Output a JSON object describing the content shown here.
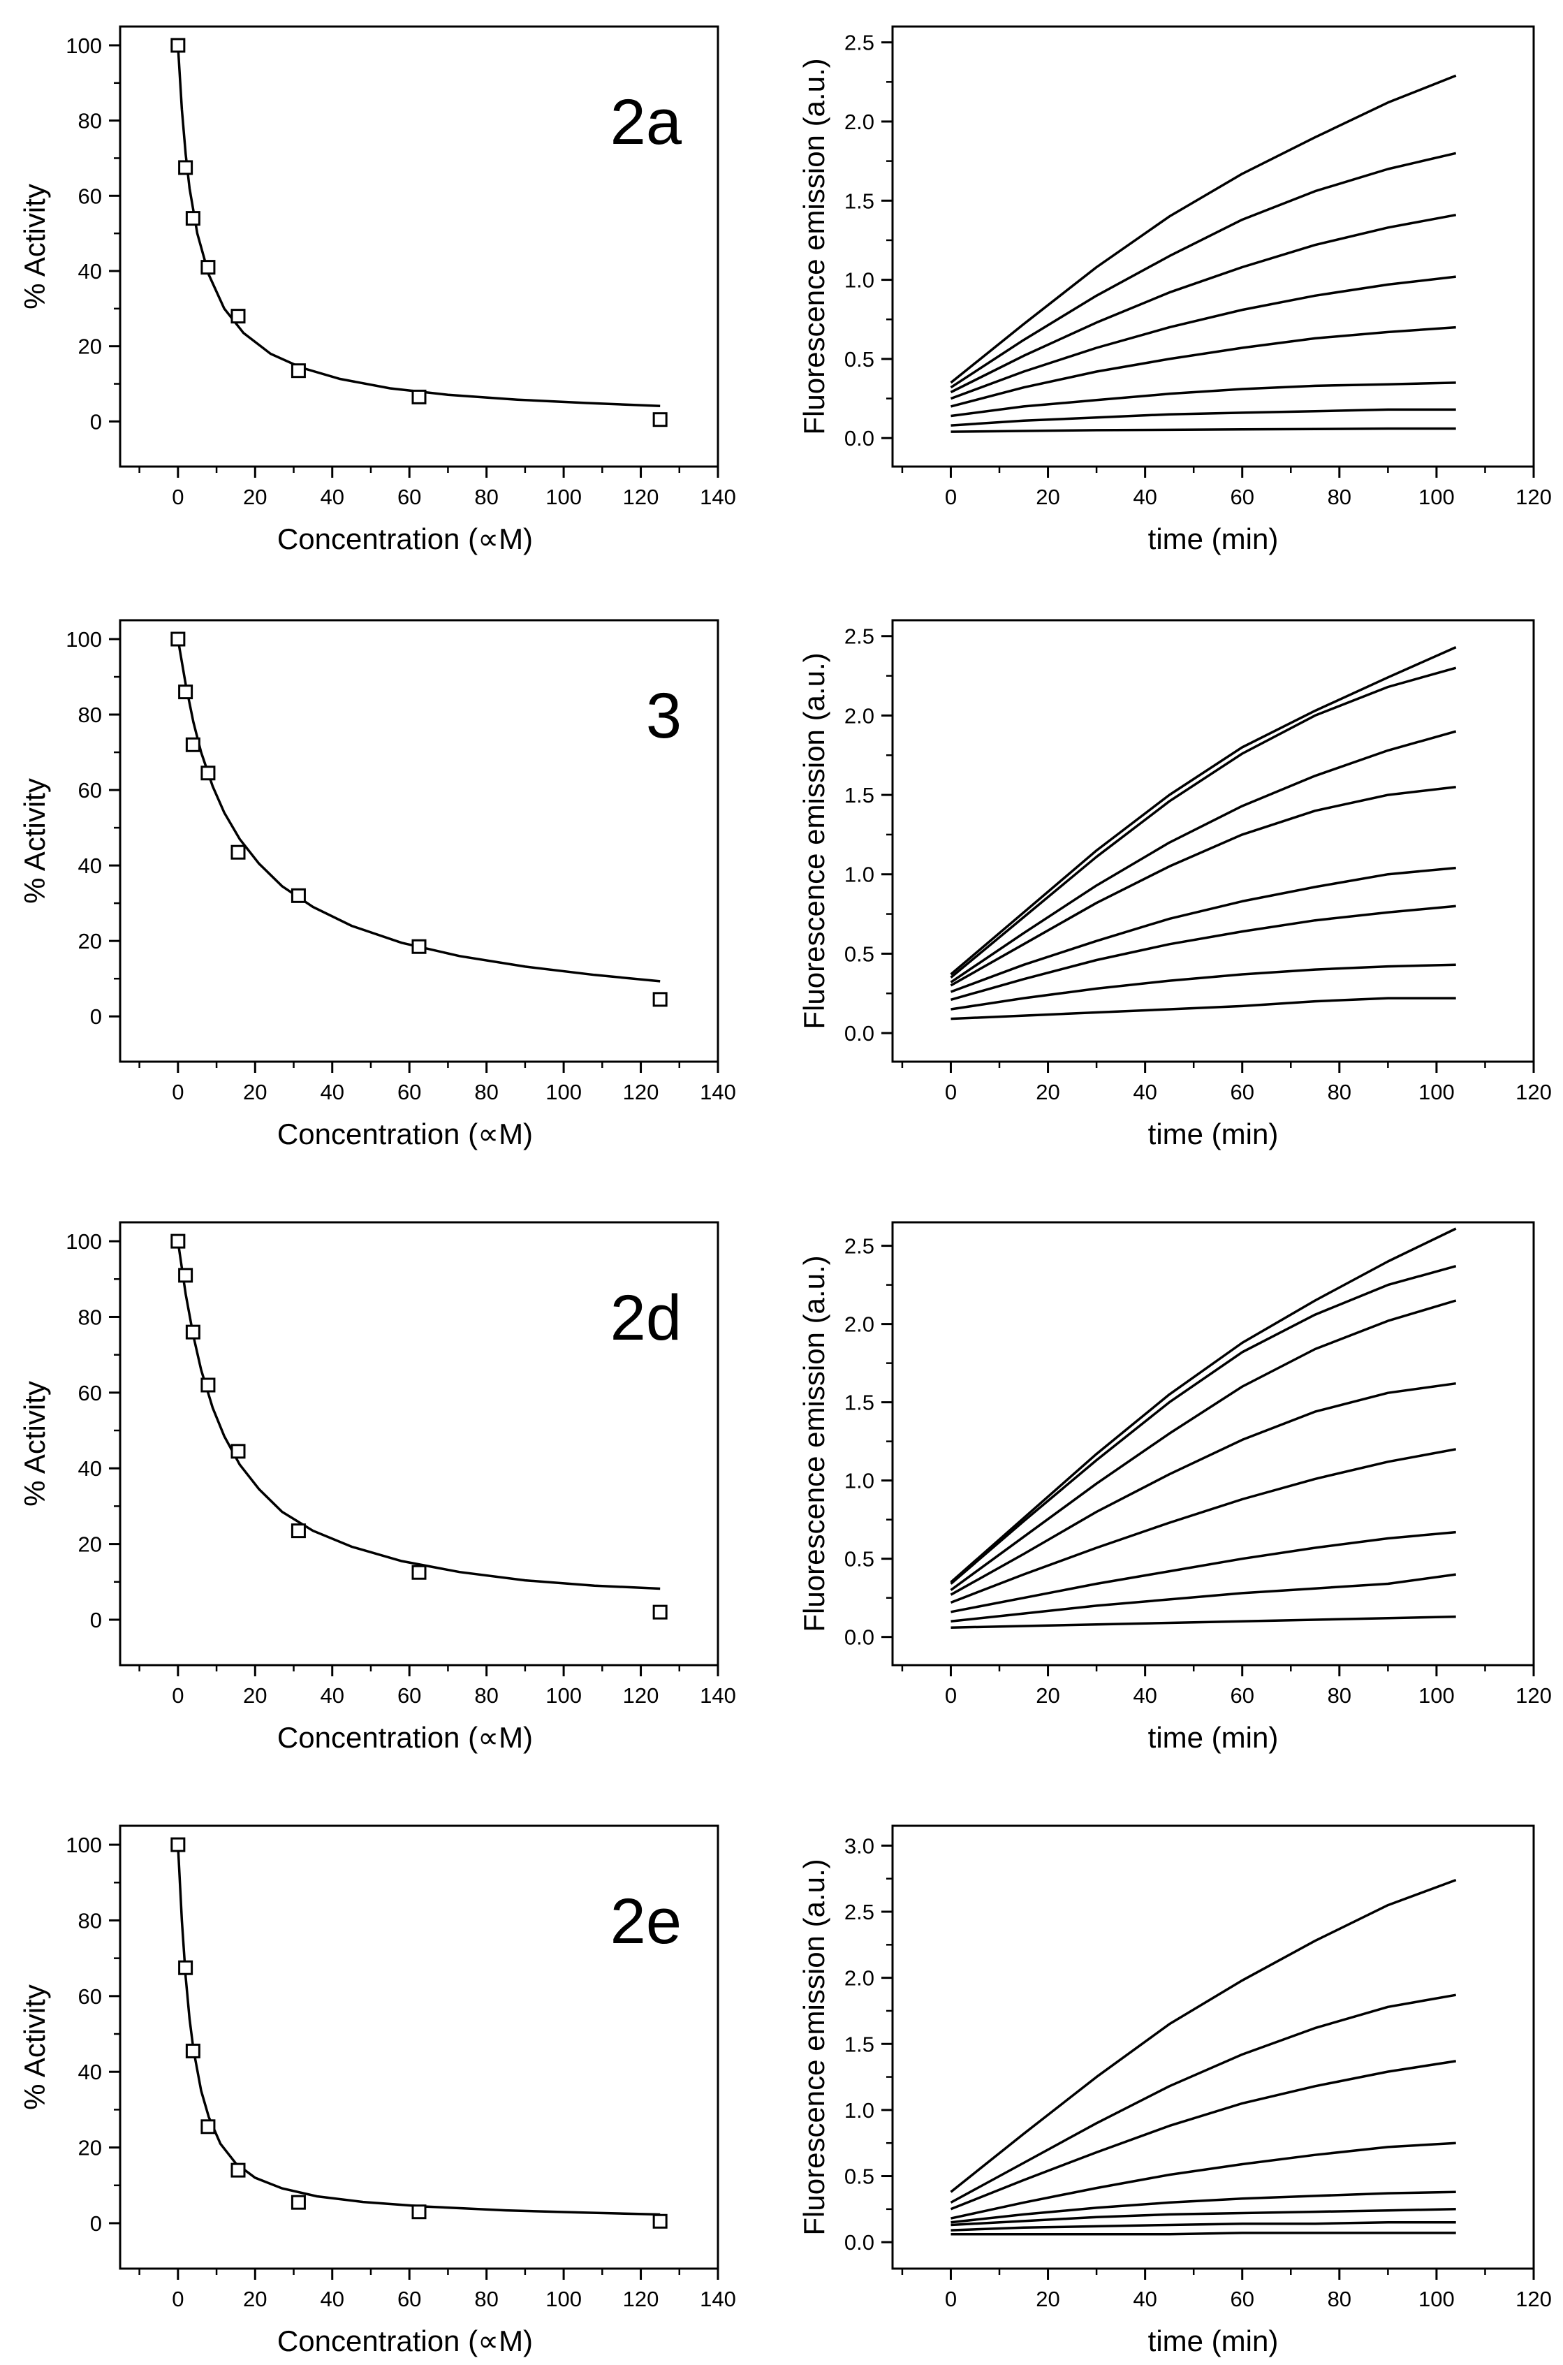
{
  "chart_data": [
    {
      "type": "scatter",
      "panel_label": "2a",
      "xlabel": "Concentration (∝M)",
      "ylabel": "% Activity",
      "xlim": [
        -15,
        140
      ],
      "ylim": [
        -12,
        105
      ],
      "xticks": [
        0,
        20,
        40,
        60,
        80,
        100,
        120,
        140
      ],
      "yticks": [
        0,
        20,
        40,
        60,
        80,
        100
      ],
      "points": {
        "x": [
          0,
          1.95,
          3.9,
          7.8,
          15.6,
          31.25,
          62.5,
          125
        ],
        "y": [
          100,
          67.5,
          54,
          41,
          28,
          13.5,
          6.5,
          0.5
        ]
      },
      "fit": {
        "x": [
          0,
          1,
          2,
          3,
          5,
          8,
          12,
          17,
          24,
          32,
          42,
          55,
          70,
          88,
          106,
          125
        ],
        "y": [
          100,
          83,
          71,
          62,
          50,
          39,
          30,
          23.5,
          18,
          14.3,
          11.3,
          8.8,
          7.1,
          5.8,
          4.9,
          4.1
        ]
      }
    },
    {
      "type": "line",
      "xlabel": "time (min)",
      "ylabel": "Fluorescence emission (a.u.)",
      "xlim": [
        -12,
        120
      ],
      "ylim": [
        -0.18,
        2.6
      ],
      "xticks": [
        0,
        20,
        40,
        60,
        80,
        100,
        120
      ],
      "yticks": [
        0.0,
        0.5,
        1.0,
        1.5,
        2.0,
        2.5
      ],
      "series": [
        {
          "x": [
            0,
            15,
            30,
            45,
            60,
            75,
            90,
            104
          ],
          "y": [
            0.35,
            0.72,
            1.08,
            1.4,
            1.67,
            1.9,
            2.12,
            2.29
          ]
        },
        {
          "x": [
            0,
            15,
            30,
            45,
            60,
            75,
            90,
            104
          ],
          "y": [
            0.32,
            0.62,
            0.9,
            1.15,
            1.38,
            1.56,
            1.7,
            1.8
          ]
        },
        {
          "x": [
            0,
            15,
            30,
            45,
            60,
            75,
            90,
            104
          ],
          "y": [
            0.29,
            0.52,
            0.73,
            0.92,
            1.08,
            1.22,
            1.33,
            1.41
          ]
        },
        {
          "x": [
            0,
            15,
            30,
            45,
            60,
            75,
            90,
            104
          ],
          "y": [
            0.25,
            0.42,
            0.57,
            0.7,
            0.81,
            0.9,
            0.97,
            1.02
          ]
        },
        {
          "x": [
            0,
            15,
            30,
            45,
            60,
            75,
            90,
            104
          ],
          "y": [
            0.2,
            0.32,
            0.42,
            0.5,
            0.57,
            0.63,
            0.67,
            0.7
          ]
        },
        {
          "x": [
            0,
            15,
            30,
            45,
            60,
            75,
            90,
            104
          ],
          "y": [
            0.14,
            0.2,
            0.24,
            0.28,
            0.31,
            0.33,
            0.34,
            0.35
          ]
        },
        {
          "x": [
            0,
            15,
            30,
            45,
            60,
            75,
            90,
            104
          ],
          "y": [
            0.08,
            0.11,
            0.13,
            0.15,
            0.16,
            0.17,
            0.18,
            0.18
          ]
        },
        {
          "x": [
            0,
            15,
            30,
            45,
            60,
            75,
            90,
            104
          ],
          "y": [
            0.04,
            0.045,
            0.05,
            0.052,
            0.055,
            0.057,
            0.06,
            0.06
          ]
        }
      ]
    },
    {
      "type": "scatter",
      "panel_label": "3",
      "xlabel": "Concentration (∝M)",
      "ylabel": "% Activity",
      "xlim": [
        -15,
        140
      ],
      "ylim": [
        -12,
        105
      ],
      "xticks": [
        0,
        20,
        40,
        60,
        80,
        100,
        120,
        140
      ],
      "yticks": [
        0,
        20,
        40,
        60,
        80,
        100
      ],
      "points": {
        "x": [
          0,
          1.95,
          3.9,
          7.8,
          15.6,
          31.25,
          62.5,
          125
        ],
        "y": [
          100,
          86,
          72,
          64.5,
          43.5,
          32,
          18.5,
          4.5
        ]
      },
      "fit": {
        "x": [
          0,
          2,
          4,
          6,
          9,
          12,
          16,
          21,
          27,
          35,
          45,
          58,
          73,
          90,
          108,
          125
        ],
        "y": [
          100,
          88,
          78,
          70,
          61,
          54,
          47,
          40.5,
          34.5,
          29,
          24,
          19.5,
          16,
          13.2,
          11,
          9.3
        ]
      }
    },
    {
      "type": "line",
      "xlabel": "time (min)",
      "ylabel": "Fluorescence emission (a.u.)",
      "xlim": [
        -12,
        120
      ],
      "ylim": [
        -0.18,
        2.6
      ],
      "xticks": [
        0,
        20,
        40,
        60,
        80,
        100,
        120
      ],
      "yticks": [
        0.0,
        0.5,
        1.0,
        1.5,
        2.0,
        2.5
      ],
      "series": [
        {
          "x": [
            0,
            15,
            30,
            45,
            60,
            75,
            90,
            104
          ],
          "y": [
            0.37,
            0.76,
            1.15,
            1.5,
            1.8,
            2.03,
            2.24,
            2.43
          ]
        },
        {
          "x": [
            0,
            15,
            30,
            45,
            60,
            75,
            90,
            104
          ],
          "y": [
            0.35,
            0.73,
            1.11,
            1.46,
            1.76,
            2.0,
            2.18,
            2.3
          ]
        },
        {
          "x": [
            0,
            15,
            30,
            45,
            60,
            75,
            90,
            104
          ],
          "y": [
            0.32,
            0.63,
            0.93,
            1.2,
            1.43,
            1.62,
            1.78,
            1.9
          ]
        },
        {
          "x": [
            0,
            15,
            30,
            45,
            60,
            75,
            90,
            104
          ],
          "y": [
            0.3,
            0.56,
            0.82,
            1.05,
            1.25,
            1.4,
            1.5,
            1.55
          ]
        },
        {
          "x": [
            0,
            15,
            30,
            45,
            60,
            75,
            90,
            104
          ],
          "y": [
            0.26,
            0.43,
            0.58,
            0.72,
            0.83,
            0.92,
            1.0,
            1.04
          ]
        },
        {
          "x": [
            0,
            15,
            30,
            45,
            60,
            75,
            90,
            104
          ],
          "y": [
            0.21,
            0.34,
            0.46,
            0.56,
            0.64,
            0.71,
            0.76,
            0.8
          ]
        },
        {
          "x": [
            0,
            15,
            30,
            45,
            60,
            75,
            90,
            104
          ],
          "y": [
            0.15,
            0.22,
            0.28,
            0.33,
            0.37,
            0.4,
            0.42,
            0.43
          ]
        },
        {
          "x": [
            0,
            15,
            30,
            45,
            60,
            75,
            90,
            104
          ],
          "y": [
            0.09,
            0.11,
            0.13,
            0.15,
            0.17,
            0.2,
            0.22,
            0.22
          ]
        }
      ]
    },
    {
      "type": "scatter",
      "panel_label": "2d",
      "xlabel": "Concentration (∝M)",
      "ylabel": "% Activity",
      "xlim": [
        -15,
        140
      ],
      "ylim": [
        -12,
        105
      ],
      "xticks": [
        0,
        20,
        40,
        60,
        80,
        100,
        120,
        140
      ],
      "yticks": [
        0,
        20,
        40,
        60,
        80,
        100
      ],
      "points": {
        "x": [
          0,
          1.95,
          3.9,
          7.8,
          15.6,
          31.25,
          62.5,
          125
        ],
        "y": [
          100,
          91,
          76,
          62,
          44.5,
          23.5,
          12.5,
          2
        ]
      },
      "fit": {
        "x": [
          0,
          2,
          4,
          6,
          9,
          12,
          16,
          21,
          27,
          35,
          45,
          58,
          73,
          90,
          108,
          125
        ],
        "y": [
          100,
          86,
          75,
          66,
          56,
          48.5,
          41,
          34.5,
          28.5,
          23.5,
          19.3,
          15.5,
          12.6,
          10.4,
          9,
          8.2
        ]
      }
    },
    {
      "type": "line",
      "xlabel": "time (min)",
      "ylabel": "Fluorescence emission (a.u.)",
      "xlim": [
        -12,
        120
      ],
      "ylim": [
        -0.18,
        2.65
      ],
      "xticks": [
        0,
        20,
        40,
        60,
        80,
        100,
        120
      ],
      "yticks": [
        0.0,
        0.5,
        1.0,
        1.5,
        2.0,
        2.5
      ],
      "series": [
        {
          "x": [
            0,
            15,
            30,
            45,
            60,
            75,
            90,
            104
          ],
          "y": [
            0.35,
            0.76,
            1.17,
            1.55,
            1.88,
            2.15,
            2.4,
            2.61
          ]
        },
        {
          "x": [
            0,
            15,
            30,
            45,
            60,
            75,
            90,
            104
          ],
          "y": [
            0.34,
            0.74,
            1.13,
            1.5,
            1.82,
            2.06,
            2.25,
            2.37
          ]
        },
        {
          "x": [
            0,
            15,
            30,
            45,
            60,
            75,
            90,
            104
          ],
          "y": [
            0.3,
            0.64,
            0.98,
            1.3,
            1.6,
            1.84,
            2.02,
            2.15
          ]
        },
        {
          "x": [
            0,
            15,
            30,
            45,
            60,
            75,
            90,
            104
          ],
          "y": [
            0.27,
            0.53,
            0.8,
            1.04,
            1.26,
            1.44,
            1.56,
            1.62
          ]
        },
        {
          "x": [
            0,
            15,
            30,
            45,
            60,
            75,
            90,
            104
          ],
          "y": [
            0.22,
            0.4,
            0.57,
            0.73,
            0.88,
            1.01,
            1.12,
            1.2
          ]
        },
        {
          "x": [
            0,
            15,
            30,
            45,
            60,
            75,
            90,
            104
          ],
          "y": [
            0.16,
            0.25,
            0.34,
            0.42,
            0.5,
            0.57,
            0.63,
            0.67
          ]
        },
        {
          "x": [
            0,
            15,
            30,
            45,
            60,
            75,
            90,
            104
          ],
          "y": [
            0.1,
            0.15,
            0.2,
            0.24,
            0.28,
            0.31,
            0.34,
            0.4
          ]
        },
        {
          "x": [
            0,
            15,
            30,
            45,
            60,
            75,
            90,
            104
          ],
          "y": [
            0.06,
            0.07,
            0.08,
            0.09,
            0.1,
            0.11,
            0.12,
            0.13
          ]
        }
      ]
    },
    {
      "type": "scatter",
      "panel_label": "2e",
      "xlabel": "Concentration (∝M)",
      "ylabel": "% Activity",
      "xlim": [
        -15,
        140
      ],
      "ylim": [
        -12,
        105
      ],
      "xticks": [
        0,
        20,
        40,
        60,
        80,
        100,
        120,
        140
      ],
      "yticks": [
        0,
        20,
        40,
        60,
        80,
        100
      ],
      "points": {
        "x": [
          0,
          1.95,
          3.9,
          7.8,
          15.6,
          31.25,
          62.5,
          125
        ],
        "y": [
          100,
          67.5,
          45.5,
          25.5,
          14,
          5.5,
          3,
          0.5
        ]
      },
      "fit": {
        "x": [
          0,
          1,
          2,
          3,
          4,
          6,
          8,
          11,
          15,
          20,
          27,
          36,
          48,
          64,
          85,
          105,
          125
        ],
        "y": [
          100,
          80,
          65,
          54,
          46,
          35,
          28,
          21,
          15.8,
          12,
          9.2,
          7.1,
          5.6,
          4.4,
          3.4,
          2.8,
          2.3
        ]
      }
    },
    {
      "type": "line",
      "xlabel": "time (min)",
      "ylabel": "Fluorescence emission (a.u.)",
      "xlim": [
        -12,
        120
      ],
      "ylim": [
        -0.2,
        3.15
      ],
      "xticks": [
        0,
        20,
        40,
        60,
        80,
        100,
        120
      ],
      "yticks": [
        0.0,
        0.5,
        1.0,
        1.5,
        2.0,
        2.5,
        3.0
      ],
      "series": [
        {
          "x": [
            0,
            15,
            30,
            45,
            60,
            75,
            90,
            104
          ],
          "y": [
            0.38,
            0.82,
            1.25,
            1.65,
            1.98,
            2.28,
            2.55,
            2.74
          ]
        },
        {
          "x": [
            0,
            15,
            30,
            45,
            60,
            75,
            90,
            104
          ],
          "y": [
            0.3,
            0.6,
            0.9,
            1.18,
            1.42,
            1.62,
            1.78,
            1.87
          ]
        },
        {
          "x": [
            0,
            15,
            30,
            45,
            60,
            75,
            90,
            104
          ],
          "y": [
            0.25,
            0.47,
            0.68,
            0.88,
            1.05,
            1.18,
            1.29,
            1.37
          ]
        },
        {
          "x": [
            0,
            15,
            30,
            45,
            60,
            75,
            90,
            104
          ],
          "y": [
            0.18,
            0.3,
            0.41,
            0.51,
            0.59,
            0.66,
            0.72,
            0.75
          ]
        },
        {
          "x": [
            0,
            15,
            30,
            45,
            60,
            75,
            90,
            104
          ],
          "y": [
            0.15,
            0.21,
            0.26,
            0.3,
            0.33,
            0.35,
            0.37,
            0.38
          ]
        },
        {
          "x": [
            0,
            15,
            30,
            45,
            60,
            75,
            90,
            104
          ],
          "y": [
            0.13,
            0.16,
            0.19,
            0.21,
            0.22,
            0.23,
            0.24,
            0.25
          ]
        },
        {
          "x": [
            0,
            15,
            30,
            45,
            60,
            75,
            90,
            104
          ],
          "y": [
            0.09,
            0.11,
            0.12,
            0.13,
            0.14,
            0.14,
            0.15,
            0.15
          ]
        },
        {
          "x": [
            0,
            15,
            30,
            45,
            60,
            75,
            90,
            104
          ],
          "y": [
            0.06,
            0.06,
            0.06,
            0.06,
            0.07,
            0.07,
            0.07,
            0.07
          ]
        }
      ]
    }
  ]
}
